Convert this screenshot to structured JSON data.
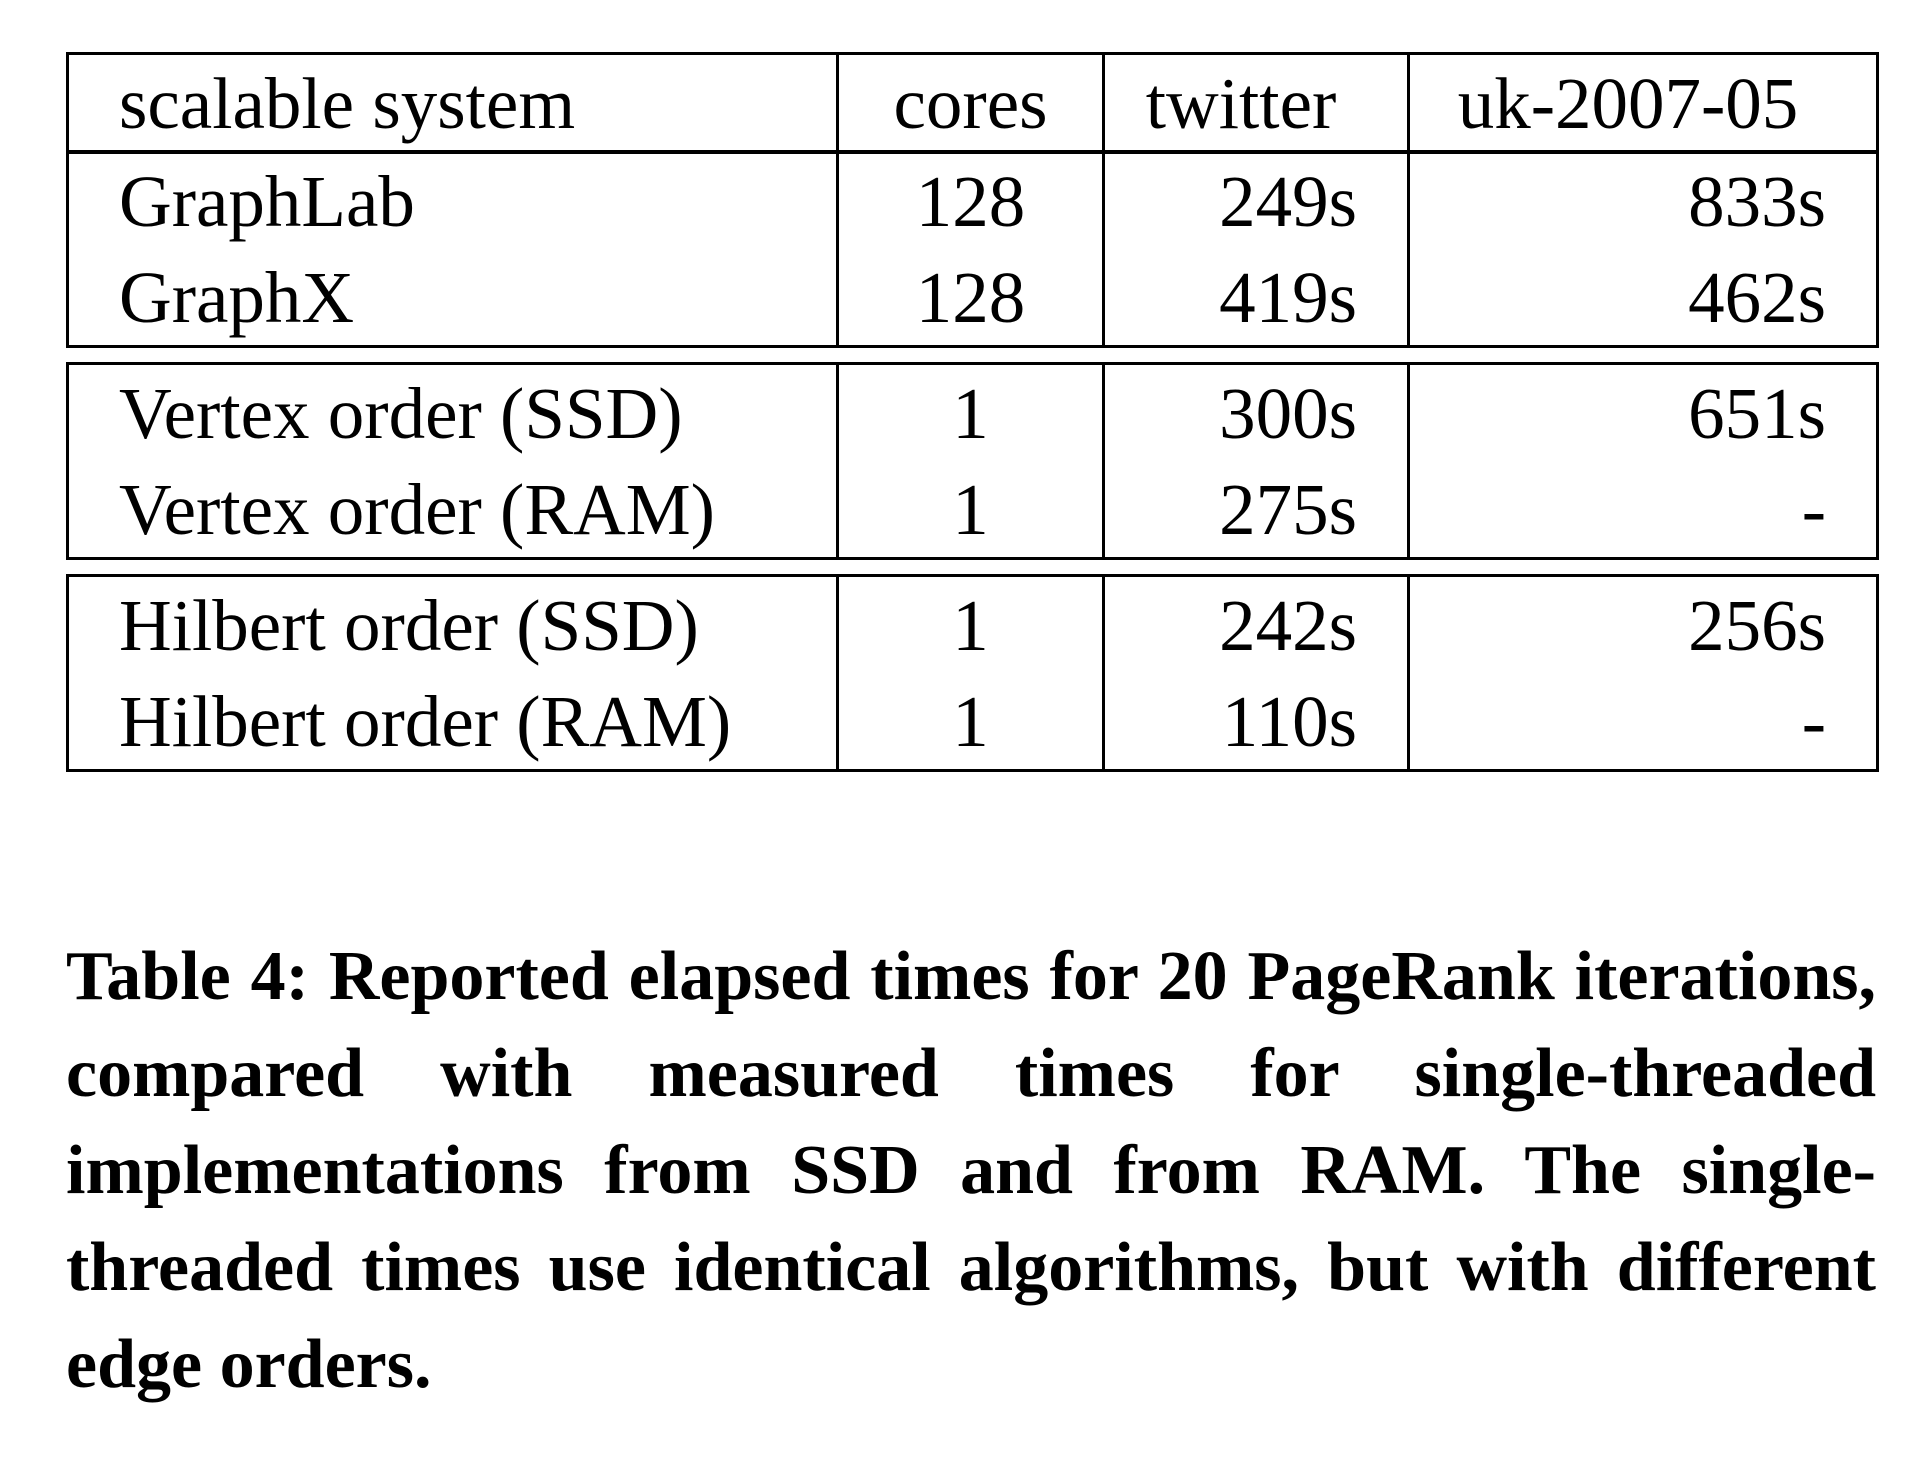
{
  "table": {
    "headers": [
      "scalable system",
      "cores",
      "twitter",
      "uk-2007-05"
    ],
    "groups": [
      [
        [
          "GraphLab",
          "128",
          "249s",
          "833s"
        ],
        [
          "GraphX",
          "128",
          "419s",
          "462s"
        ]
      ],
      [
        [
          "Vertex order (SSD)",
          "1",
          "300s",
          "651s"
        ],
        [
          "Vertex order (RAM)",
          "1",
          "275s",
          "-"
        ]
      ],
      [
        [
          "Hilbert order (SSD)",
          "1",
          "242s",
          "256s"
        ],
        [
          "Hilbert order (RAM)",
          "1",
          "110s",
          "-"
        ]
      ]
    ]
  },
  "caption": "Table 4: Reported elapsed times for 20 PageRank iterations, compared with measured times for single-threaded implementations from SSD and from RAM. The single-threaded times use identical algorithms, but with different edge orders."
}
